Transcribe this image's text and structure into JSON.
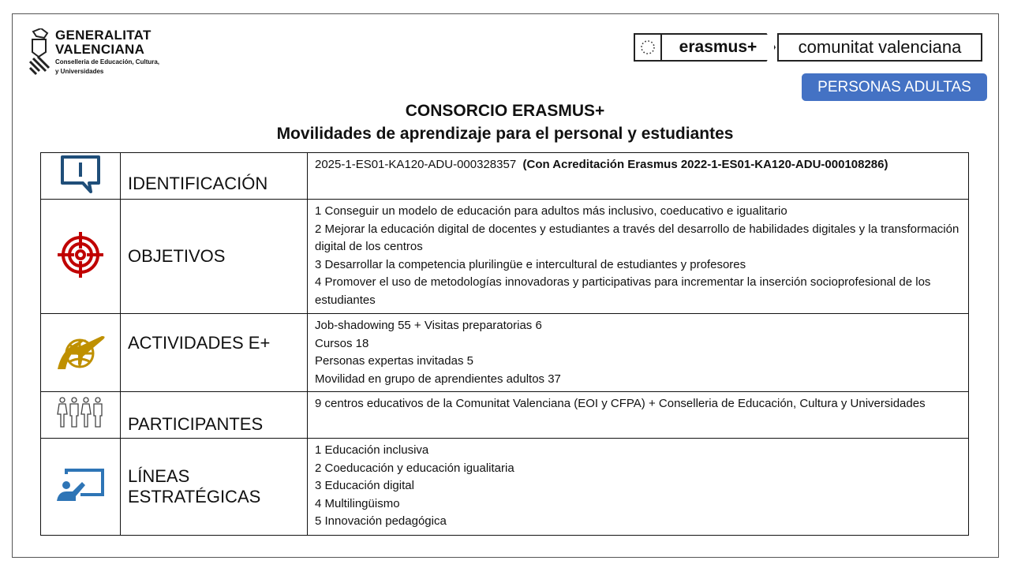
{
  "logo_left": {
    "name": [
      "GENERALITAT",
      "VALENCIANA"
    ],
    "sub": [
      "Conselleria de Educación, Cultura,",
      "y Universidades"
    ]
  },
  "logo_right": {
    "brand": "erasmus+",
    "region": "comunitat valenciana"
  },
  "badge": "PERSONAS ADULTAS",
  "title": [
    "CONSORCIO ERASMUS+",
    "Movilidades de aprendizaje para el personal y estudiantes"
  ],
  "rows": [
    {
      "icon": "alert-speech-icon",
      "label": "IDENTIFICACIÓN",
      "code": "2025-1-ES01-KA120-ADU-000328357",
      "code_bold": "(Con Acreditación Erasmus 2022-1-ES01-KA120-ADU-000108286)"
    },
    {
      "icon": "target-icon",
      "label": "OBJETIVOS",
      "lines": [
        "1 Conseguir un modelo de educación para adultos más inclusivo, coeducativo e igualitario",
        "2 Mejorar la educación digital de docentes y estudiantes a través del desarrollo de habilidades digitales y la transformación digital de los centros",
        "3 Desarrollar la competencia plurilingüe e intercultural de estudiantes y profesores",
        "4 Promover el uso de metodologías innovadoras y participativas para incrementar la inserción socioprofesional de los estudiantes"
      ]
    },
    {
      "icon": "globe-plane-icon",
      "label": "ACTIVIDADES E+",
      "lines": [
        "Job-shadowing 55 + Visitas preparatorias 6",
        "Cursos 18",
        "Personas expertas invitadas 5",
        "Movilidad en grupo de aprendientes adultos 37"
      ]
    },
    {
      "icon": "people-icon",
      "label": "PARTICIPANTES",
      "lines": [
        "9 centros educativos de la Comunitat Valenciana (EOI y CFPA) + Conselleria de Educación, Cultura y Universidades"
      ]
    },
    {
      "icon": "teacher-board-icon",
      "label": "LÍNEAS ESTRATÉGICAS",
      "lines": [
        "1 Educación inclusiva",
        "2 Coeducación y educación igualitaria",
        "3 Educación digital",
        "4 Multilingüismo",
        "5 Innovación pedagógica"
      ]
    }
  ],
  "colors": {
    "badge": "#4472c4",
    "identificacion_icon": "#1f4e79",
    "objetivos_icon": "#c00000",
    "actividades_icon": "#bf9000",
    "lineas_icon": "#2e75b6"
  }
}
